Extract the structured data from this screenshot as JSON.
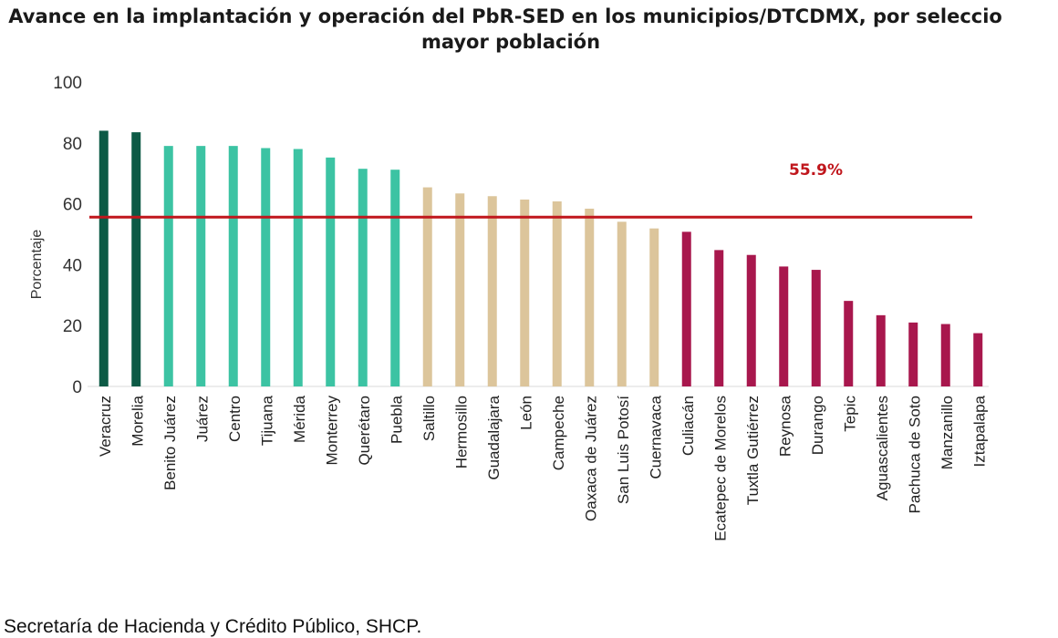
{
  "title_line1": ". Avance en la implantación y operación del PbR-SED en los municipios/DTCDMX, por seleccio",
  "title_line2": "mayor población",
  "source": "Secretaría de Hacienda y Crédito Público, SHCP.",
  "chart_data": {
    "type": "bar",
    "title": ". Avance en la implantación y operación del PbR-SED en los municipios/DTCDMX, por seleccio mayor población",
    "ylabel": "Porcentaje",
    "xlabel": "",
    "ylim": [
      0,
      100
    ],
    "yticks": [
      0,
      20,
      40,
      60,
      80,
      100
    ],
    "grid": false,
    "categories": [
      "Veracruz",
      "Morelia",
      "Benito Juárez",
      "Juárez",
      "Centro",
      "Tijuana",
      "Mérida",
      "Monterrey",
      "Querétaro",
      "Puebla",
      "Saltillo",
      "Hermosillo",
      "Guadalajara",
      "León",
      "Campeche",
      "Oaxaca de Juárez",
      "San Luis Potosí",
      "Cuernavaca",
      "Culiacán",
      "Ecatepec de Morelos",
      "Tuxtla Gutiérrez",
      "Reynosa",
      "Durango",
      "Tepic",
      "Aguascalientes",
      "Pachuca de Soto",
      "Manzanillo",
      "Iztapalapa"
    ],
    "values": [
      84,
      83.5,
      79,
      79,
      79,
      78.3,
      78,
      75.2,
      71.5,
      71.2,
      65.4,
      63.4,
      62.5,
      61.4,
      60.8,
      58.4,
      54.1,
      51.9,
      50.8,
      44.8,
      43.2,
      39.4,
      38.3,
      28.1,
      23.4,
      21,
      20.5,
      17.5
    ],
    "bar_colors": [
      "#0c5a45",
      "#0c5a45",
      "#3cc3a3",
      "#3cc3a3",
      "#3cc3a3",
      "#3cc3a3",
      "#3cc3a3",
      "#3cc3a3",
      "#3cc3a3",
      "#3cc3a3",
      "#dcc59b",
      "#dcc59b",
      "#dcc59b",
      "#dcc59b",
      "#dcc59b",
      "#dcc59b",
      "#dcc59b",
      "#dcc59b",
      "#a8174d",
      "#a8174d",
      "#a8174d",
      "#a8174d",
      "#a8174d",
      "#a8174d",
      "#a8174d",
      "#a8174d",
      "#a8174d",
      "#a8174d"
    ],
    "reference_line": {
      "value": 55.9,
      "label": "55.9%",
      "color": "#c0161c"
    }
  }
}
